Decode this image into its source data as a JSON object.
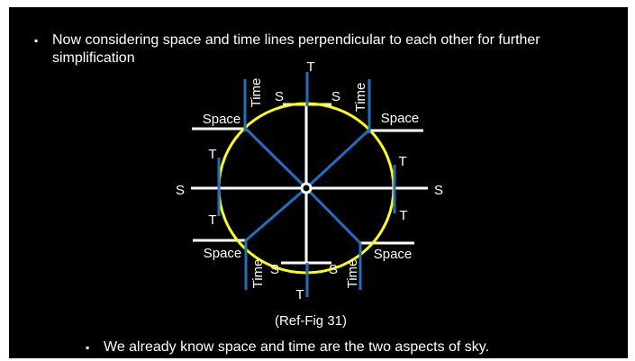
{
  "bullets": [
    "Now considering space and time lines perpendicular to each other for further simplification",
    "We already know space and time are the two aspects of sky."
  ],
  "diagram": {
    "labels": [
      "T",
      "S",
      "S",
      "Time",
      "Time",
      "Space",
      "Space",
      "T",
      "T",
      "S",
      "S",
      "T",
      "T",
      "Space",
      "Space",
      "Time",
      "S",
      "S",
      "Time",
      "T"
    ],
    "caption": "(Ref-Fig 31)"
  }
}
